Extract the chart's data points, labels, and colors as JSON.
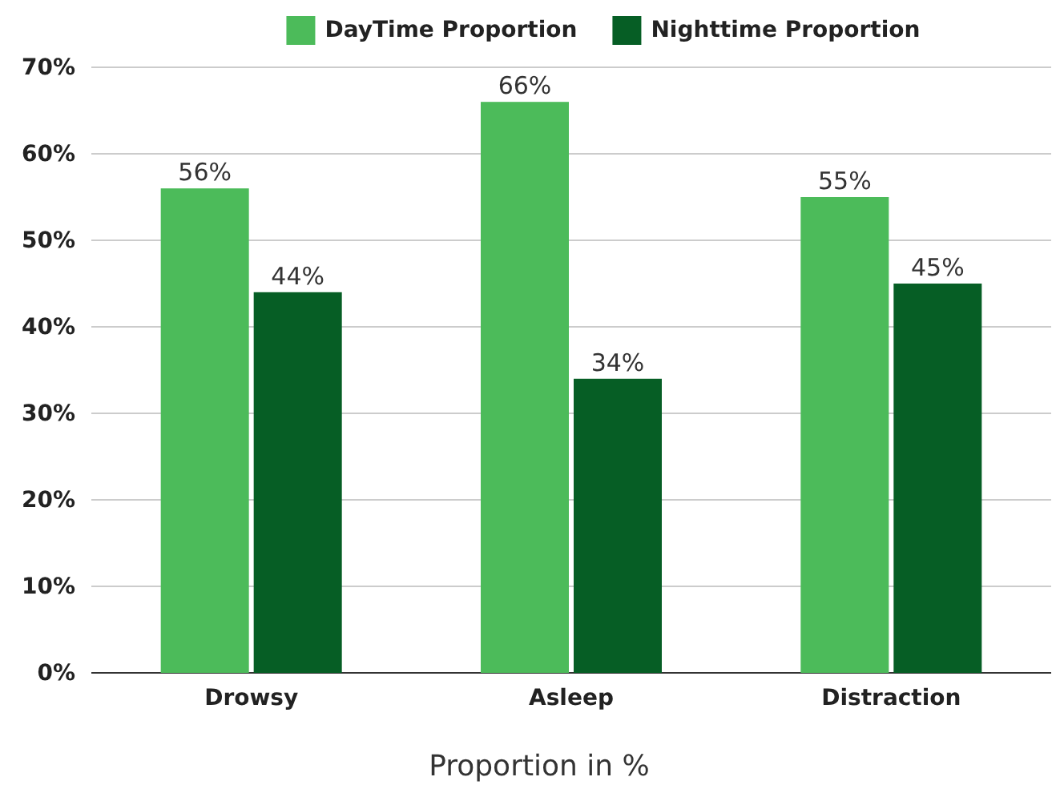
{
  "chart_data": {
    "type": "bar",
    "xlabel": "Proportion in %",
    "categories": [
      "Drowsy",
      "Asleep",
      "Distraction"
    ],
    "series": [
      {
        "name": "DayTime Proportion",
        "color": "#4cbb5a",
        "values": [
          56,
          66,
          55
        ],
        "value_labels": [
          "56%",
          "66%",
          "55%"
        ]
      },
      {
        "name": "Nighttime Proportion",
        "color": "#065e25",
        "values": [
          44,
          34,
          45
        ],
        "value_labels": [
          "44%",
          "34%",
          "45%"
        ]
      }
    ],
    "ylim": [
      0,
      70
    ],
    "yticks": [
      {
        "value": 0,
        "label": "0%"
      },
      {
        "value": 10,
        "label": "10%"
      },
      {
        "value": 20,
        "label": "20%"
      },
      {
        "value": 30,
        "label": "30%"
      },
      {
        "value": 40,
        "label": "40%"
      },
      {
        "value": 50,
        "label": "50%"
      },
      {
        "value": 60,
        "label": "60%"
      },
      {
        "value": 70,
        "label": "70%"
      }
    ],
    "grid": "y",
    "legend": "top"
  }
}
